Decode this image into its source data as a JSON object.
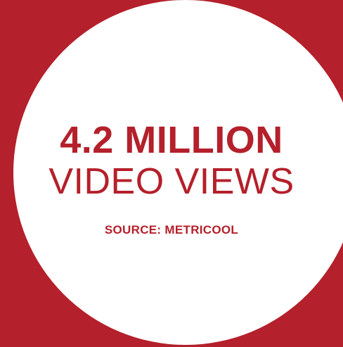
{
  "colors": {
    "background": "#b4202b",
    "circle": "#ffffff",
    "accent": "#b4202b"
  },
  "headline": "4.2 MILLION",
  "subhead": "VIDEO VIEWS",
  "source": "SOURCE: METRICOOL"
}
